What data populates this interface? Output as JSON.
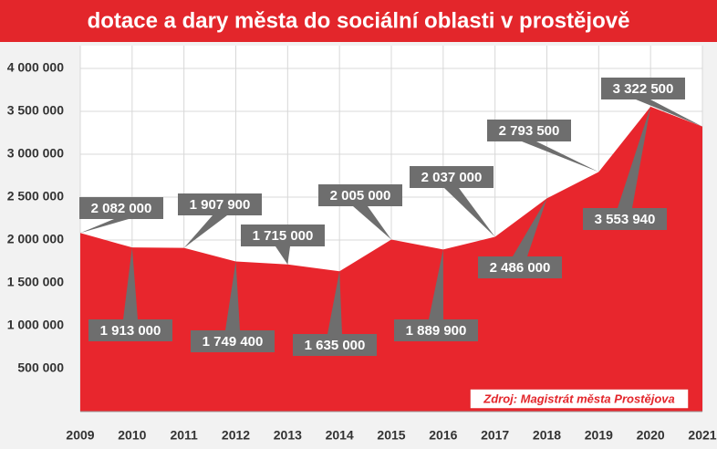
{
  "chart_data": {
    "type": "area",
    "title": "dotace a dary města do sociální oblasti v prostějově",
    "source": "Zdroj: Magistrát města Prostějova",
    "categories": [
      "2009",
      "2010",
      "2011",
      "2012",
      "2013",
      "2014",
      "2015",
      "2016",
      "2017",
      "2018",
      "2019",
      "2020",
      "2021"
    ],
    "values": [
      2082000,
      1913000,
      1907900,
      1749400,
      1715000,
      1635000,
      2005000,
      1889900,
      2037000,
      2486000,
      2793500,
      3553940,
      3322500
    ],
    "value_labels": [
      "2 082 000",
      "1 913 000",
      "1 907 900",
      "1 749 400",
      "1 715 000",
      "1 635 000",
      "2 005 000",
      "1 889 900",
      "2 037 000",
      "2 486 000",
      "2 793 500",
      "3 553 940",
      "3 322 500"
    ],
    "color": "#e8262d",
    "ylim": [
      0,
      4000000
    ],
    "yticks": [
      {
        "value": 500000,
        "label": "500 000"
      },
      {
        "value": 1000000,
        "label": "1 000 000"
      },
      {
        "value": 1500000,
        "label": "1 500 000"
      },
      {
        "value": 2000000,
        "label": "2 000 000"
      },
      {
        "value": 2500000,
        "label": "2 500 000"
      },
      {
        "value": 3000000,
        "label": "3 000 000"
      },
      {
        "value": 3500000,
        "label": "3 500 000"
      },
      {
        "value": 4000000,
        "label": "4 000 000"
      }
    ],
    "grid": true
  }
}
